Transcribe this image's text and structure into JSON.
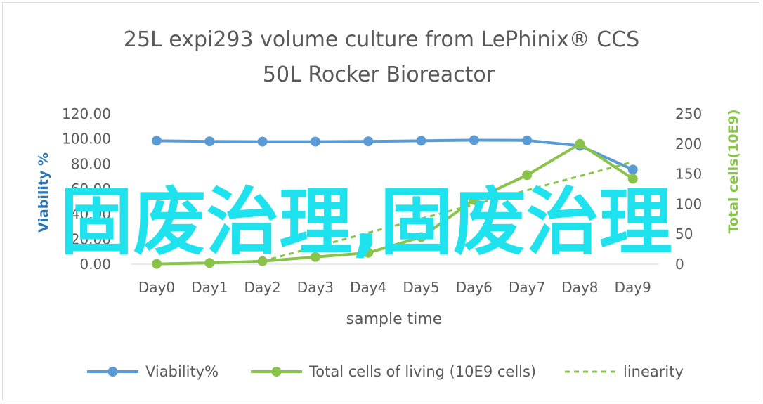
{
  "chart_data": {
    "type": "line",
    "title_lines": [
      "25L  expi293 volume culture  from LePhinix® CCS",
      "50L Rocker Bioreactor"
    ],
    "xlabel": "sample  time",
    "ylabel_left": "Viability %",
    "ylabel_right": "Total cells(10E9)",
    "categories": [
      "Day0",
      "Day1",
      "Day2",
      "Day3",
      "Day4",
      "Day5",
      "Day6",
      "Day7",
      "Day8",
      "Day9"
    ],
    "ylim_left": [
      0,
      120
    ],
    "yticks_left": [
      "0.00",
      "20.00",
      "40.00",
      "60.00",
      "80.00",
      "100.00",
      "120.00"
    ],
    "ylim_right": [
      0,
      250
    ],
    "yticks_right": [
      "0",
      "50",
      "100",
      "150",
      "200",
      "250"
    ],
    "series": [
      {
        "name": "Viability%",
        "axis": "left",
        "color": "#5b9bd5",
        "style": "solid-marker",
        "values": [
          98.5,
          98,
          97.8,
          97.8,
          98,
          98.5,
          99,
          98.8,
          94.5,
          75.5
        ]
      },
      {
        "name": "Total cells of living (10E9 cells)",
        "axis": "right",
        "color": "#8ac34a",
        "style": "solid-marker",
        "values": [
          0.5,
          2,
          5,
          12,
          19,
          45,
          107,
          148,
          200,
          142
        ]
      },
      {
        "name": "linearity",
        "axis": "right",
        "color": "#8ac34a",
        "style": "dashed",
        "x_start": 2,
        "x_end": 9,
        "values_at": [
          5,
          170
        ]
      }
    ],
    "legend_position": "bottom",
    "grid": false
  },
  "watermark": "固废治理,固废治理"
}
